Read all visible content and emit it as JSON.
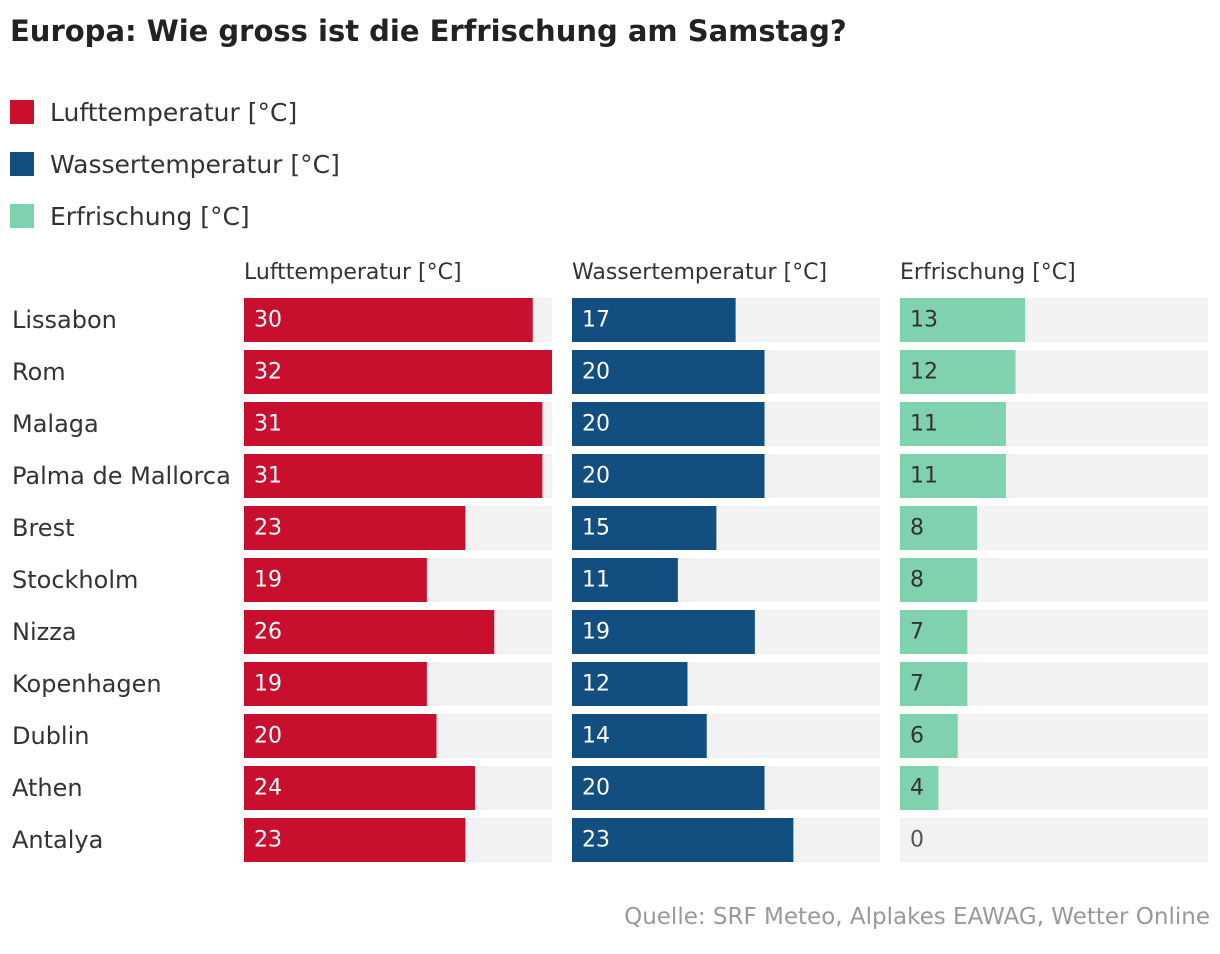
{
  "title": "Europa: Wie gross ist die Erfrischung am Samstag?",
  "legend": [
    {
      "label": "Lufttemperatur [°C]",
      "color": "#c8102e"
    },
    {
      "label": "Wassertemperatur [°C]",
      "color": "#124f80"
    },
    {
      "label": "Erfrischung [°C]",
      "color": "#80d1ae"
    }
  ],
  "source": "Quelle: SRF Meteo, Alplakes EAWAG, Wetter Online",
  "colors": {
    "track": "#f2f2f2",
    "label_on_dark": "#ffffff",
    "label_on_light": "#333333",
    "label_empty": "#555555"
  },
  "chart_data": {
    "type": "bar",
    "title": "Europa: Wie gross ist die Erfrischung am Samstag?",
    "orientation": "horizontal",
    "categories": [
      "Lissabon",
      "Rom",
      "Malaga",
      "Palma de Mallorca",
      "Brest",
      "Stockholm",
      "Nizza",
      "Kopenhagen",
      "Dublin",
      "Athen",
      "Antalya"
    ],
    "series": [
      {
        "name": "Lufttemperatur [°C]",
        "color": "#c8102e",
        "max": 32,
        "values": [
          30,
          32,
          31,
          31,
          23,
          19,
          26,
          19,
          20,
          24,
          23
        ]
      },
      {
        "name": "Wassertemperatur [°C]",
        "color": "#124f80",
        "max": 32,
        "values": [
          17,
          20,
          20,
          20,
          15,
          11,
          19,
          12,
          14,
          20,
          23
        ]
      },
      {
        "name": "Erfrischung [°C]",
        "color": "#80d1ae",
        "max": 32,
        "values": [
          13,
          12,
          11,
          11,
          8,
          8,
          7,
          7,
          6,
          4,
          0
        ]
      }
    ],
    "xlabel": "",
    "ylabel": "",
    "legend_position": "top-left",
    "grid": false
  }
}
